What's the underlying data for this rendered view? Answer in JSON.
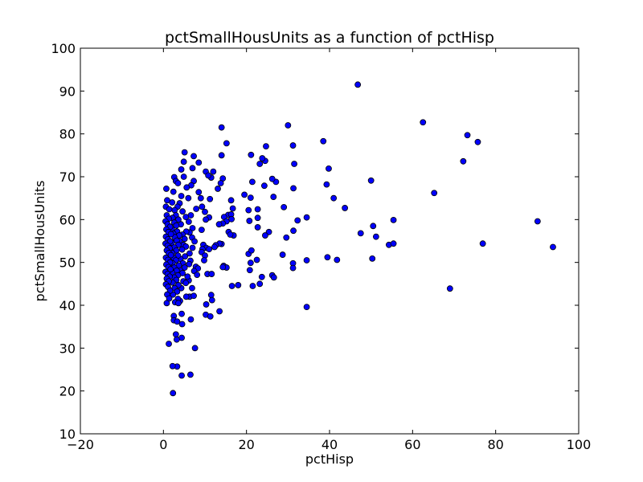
{
  "chart_data": {
    "type": "scatter",
    "title": "pctSmallHousUnits as a function of pctHisp",
    "xlabel": "pctHisp",
    "ylabel": "pctSmallHousUnits",
    "xlim": [
      -20,
      100
    ],
    "ylim": [
      10,
      100
    ],
    "xticks": [
      -20,
      0,
      20,
      40,
      60,
      80,
      100
    ],
    "yticks": [
      10,
      20,
      30,
      40,
      50,
      60,
      70,
      80,
      90,
      100
    ],
    "xtick_labels": [
      "−20",
      "0",
      "20",
      "40",
      "60",
      "80",
      "100"
    ],
    "ytick_labels": [
      "10",
      "20",
      "30",
      "40",
      "50",
      "60",
      "70",
      "80",
      "90",
      "100"
    ],
    "grid": false,
    "marker_color": "#0000ff",
    "marker_edge_color": "#000000",
    "points": [
      [
        46.8,
        91.5
      ],
      [
        62.5,
        82.7
      ],
      [
        73.2,
        79.7
      ],
      [
        75.7,
        78.1
      ],
      [
        72.2,
        73.6
      ],
      [
        65.2,
        66.2
      ],
      [
        90.1,
        59.6
      ],
      [
        93.8,
        53.6
      ],
      [
        76.9,
        54.4
      ],
      [
        69.0,
        43.9
      ],
      [
        50.0,
        69.1
      ],
      [
        47.5,
        56.8
      ],
      [
        50.5,
        58.5
      ],
      [
        51.2,
        56.0
      ],
      [
        54.3,
        54.1
      ],
      [
        55.4,
        54.4
      ],
      [
        55.4,
        59.9
      ],
      [
        50.3,
        50.9
      ],
      [
        43.7,
        62.7
      ],
      [
        41.0,
        65.0
      ],
      [
        39.8,
        71.9
      ],
      [
        39.3,
        68.2
      ],
      [
        38.5,
        78.3
      ],
      [
        39.5,
        51.2
      ],
      [
        41.8,
        50.6
      ],
      [
        34.5,
        60.5
      ],
      [
        34.5,
        50.5
      ],
      [
        34.5,
        39.6
      ],
      [
        32.3,
        59.8
      ],
      [
        31.5,
        73.0
      ],
      [
        31.2,
        77.3
      ],
      [
        31.3,
        67.3
      ],
      [
        31.3,
        57.4
      ],
      [
        30.0,
        82.0
      ],
      [
        29.6,
        55.8
      ],
      [
        29.0,
        62.9
      ],
      [
        28.7,
        51.8
      ],
      [
        31.2,
        49.8
      ],
      [
        31.2,
        48.7
      ],
      [
        27.1,
        68.8
      ],
      [
        26.2,
        69.5
      ],
      [
        26.5,
        65.3
      ],
      [
        25.4,
        57.1
      ],
      [
        24.5,
        56.3
      ],
      [
        24.5,
        73.7
      ],
      [
        24.3,
        67.9
      ],
      [
        23.8,
        74.3
      ],
      [
        24.7,
        77.1
      ],
      [
        23.2,
        73.0
      ],
      [
        22.7,
        62.4
      ],
      [
        22.7,
        60.4
      ],
      [
        22.7,
        58.2
      ],
      [
        22.5,
        50.6
      ],
      [
        23.2,
        45.0
      ],
      [
        23.7,
        46.6
      ],
      [
        26.2,
        47.0
      ],
      [
        26.6,
        46.5
      ],
      [
        21.1,
        75.1
      ],
      [
        21.0,
        65.1
      ],
      [
        20.7,
        59.7
      ],
      [
        20.5,
        62.2
      ],
      [
        21.4,
        68.8
      ],
      [
        20.5,
        52.0
      ],
      [
        21.2,
        52.8
      ],
      [
        21.0,
        49.9
      ],
      [
        20.8,
        48.2
      ],
      [
        21.5,
        44.5
      ],
      [
        18.0,
        44.7
      ],
      [
        19.5,
        65.8
      ],
      [
        14.0,
        81.5
      ],
      [
        15.2,
        77.8
      ],
      [
        14.0,
        75.0
      ],
      [
        14.3,
        69.6
      ],
      [
        13.8,
        68.5
      ],
      [
        13.1,
        67.2
      ],
      [
        16.3,
        64.5
      ],
      [
        16.7,
        62.6
      ],
      [
        15.6,
        61.1
      ],
      [
        16.3,
        61.2
      ],
      [
        14.6,
        60.6
      ],
      [
        15.2,
        59.6
      ],
      [
        16.4,
        60.1
      ],
      [
        14.3,
        59.1
      ],
      [
        13.4,
        58.9
      ],
      [
        15.7,
        57.1
      ],
      [
        16.9,
        56.3
      ],
      [
        16.1,
        56.5
      ],
      [
        14.0,
        54.3
      ],
      [
        13.5,
        54.4
      ],
      [
        12.6,
        54.0
      ],
      [
        12.3,
        53.6
      ],
      [
        14.5,
        49.2
      ],
      [
        15.2,
        48.8
      ],
      [
        14.3,
        48.9
      ],
      [
        13.5,
        38.6
      ],
      [
        16.5,
        44.5
      ],
      [
        12.0,
        71.2
      ],
      [
        11.5,
        69.8
      ],
      [
        10.2,
        71.2
      ],
      [
        10.8,
        70.3
      ],
      [
        11.2,
        64.8
      ],
      [
        10.0,
        61.8
      ],
      [
        11.0,
        60.5
      ],
      [
        10.2,
        60.0
      ],
      [
        9.3,
        63.0
      ],
      [
        9.0,
        65.0
      ],
      [
        8.5,
        66.4
      ],
      [
        9.2,
        57.6
      ],
      [
        9.6,
        54.1
      ],
      [
        10.3,
        53.4
      ],
      [
        11.0,
        53.1
      ],
      [
        9.4,
        53.1
      ],
      [
        9.2,
        52.4
      ],
      [
        10.0,
        51.6
      ],
      [
        9.8,
        50.5
      ],
      [
        10.6,
        47.3
      ],
      [
        11.6,
        47.3
      ],
      [
        11.5,
        42.4
      ],
      [
        11.7,
        41.2
      ],
      [
        10.3,
        40.2
      ],
      [
        10.2,
        37.8
      ],
      [
        11.3,
        37.4
      ],
      [
        8.5,
        73.3
      ],
      [
        7.3,
        74.8
      ],
      [
        7.0,
        72.0
      ],
      [
        7.3,
        69.0
      ],
      [
        6.7,
        68.0
      ],
      [
        6.0,
        65.0
      ],
      [
        7.9,
        62.5
      ],
      [
        6.6,
        61.0
      ],
      [
        6.1,
        59.5
      ],
      [
        7.0,
        58.0
      ],
      [
        6.3,
        57.0
      ],
      [
        6.9,
        55.8
      ],
      [
        7.5,
        54.9
      ],
      [
        7.0,
        53.4
      ],
      [
        6.3,
        52.1
      ],
      [
        6.5,
        50.4
      ],
      [
        6.2,
        49.6
      ],
      [
        7.8,
        49.0
      ],
      [
        8.3,
        48.6
      ],
      [
        7.4,
        48.0
      ],
      [
        8.1,
        47.1
      ],
      [
        6.1,
        45.8
      ],
      [
        6.9,
        44.0
      ],
      [
        6.3,
        42.0
      ],
      [
        7.3,
        42.2
      ],
      [
        6.6,
        36.7
      ],
      [
        7.6,
        30.0
      ],
      [
        6.5,
        23.8
      ],
      [
        5.1,
        75.7
      ],
      [
        4.9,
        73.5
      ],
      [
        4.3,
        71.7
      ],
      [
        4.9,
        70.0
      ],
      [
        5.6,
        67.5
      ],
      [
        4.3,
        65.5
      ],
      [
        3.9,
        63.8
      ],
      [
        4.6,
        61.9
      ],
      [
        5.4,
        60.6
      ],
      [
        4.2,
        58.9
      ],
      [
        5.5,
        57.2
      ],
      [
        4.6,
        56.5
      ],
      [
        5.1,
        55.5
      ],
      [
        3.9,
        55.0
      ],
      [
        4.8,
        54.1
      ],
      [
        5.4,
        53.7
      ],
      [
        4.5,
        53.0
      ],
      [
        5.2,
        51.4
      ],
      [
        4.1,
        50.8
      ],
      [
        4.7,
        49.8
      ],
      [
        5.1,
        48.8
      ],
      [
        4.0,
        48.2
      ],
      [
        4.6,
        47.5
      ],
      [
        5.8,
        46.7
      ],
      [
        4.8,
        45.6
      ],
      [
        5.4,
        45.2
      ],
      [
        4.3,
        44.0
      ],
      [
        5.5,
        42.0
      ],
      [
        4.0,
        41.0
      ],
      [
        4.4,
        38.0
      ],
      [
        4.5,
        35.6
      ],
      [
        4.4,
        32.4
      ],
      [
        4.4,
        23.6
      ],
      [
        2.6,
        69.9
      ],
      [
        3.0,
        69.0
      ],
      [
        3.5,
        68.5
      ],
      [
        2.4,
        66.5
      ],
      [
        2.1,
        64.0
      ],
      [
        3.4,
        63.0
      ],
      [
        2.7,
        62.2
      ],
      [
        3.0,
        61.0
      ],
      [
        2.2,
        60.4
      ],
      [
        3.6,
        60.0
      ],
      [
        2.6,
        59.3
      ],
      [
        3.1,
        58.6
      ],
      [
        2.0,
        57.8
      ],
      [
        3.3,
        57.2
      ],
      [
        2.4,
        56.7
      ],
      [
        3.8,
        56.3
      ],
      [
        2.7,
        55.9
      ],
      [
        3.2,
        55.1
      ],
      [
        2.0,
        54.6
      ],
      [
        3.6,
        54.1
      ],
      [
        2.6,
        53.5
      ],
      [
        3.1,
        52.8
      ],
      [
        2.1,
        52.2
      ],
      [
        3.5,
        51.6
      ],
      [
        2.5,
        51.0
      ],
      [
        3.0,
        50.5
      ],
      [
        2.2,
        49.8
      ],
      [
        3.7,
        49.3
      ],
      [
        2.6,
        48.8
      ],
      [
        3.2,
        48.1
      ],
      [
        2.1,
        47.6
      ],
      [
        3.5,
        47.0
      ],
      [
        2.6,
        46.5
      ],
      [
        3.1,
        45.9
      ],
      [
        2.2,
        45.3
      ],
      [
        3.6,
        44.7
      ],
      [
        2.7,
        44.0
      ],
      [
        3.3,
        43.2
      ],
      [
        2.3,
        42.5
      ],
      [
        3.5,
        41.5
      ],
      [
        2.8,
        40.7
      ],
      [
        3.6,
        40.5
      ],
      [
        2.5,
        37.5
      ],
      [
        2.5,
        36.5
      ],
      [
        3.3,
        36.2
      ],
      [
        3.0,
        33.2
      ],
      [
        3.2,
        32.0
      ],
      [
        3.3,
        25.7
      ],
      [
        2.2,
        25.8
      ],
      [
        2.3,
        19.5
      ],
      [
        0.7,
        67.2
      ],
      [
        0.9,
        64.5
      ],
      [
        0.6,
        63.0
      ],
      [
        1.4,
        62.4
      ],
      [
        0.8,
        61.0
      ],
      [
        1.3,
        60.2
      ],
      [
        0.5,
        59.6
      ],
      [
        1.0,
        58.9
      ],
      [
        1.6,
        58.3
      ],
      [
        0.7,
        57.7
      ],
      [
        1.2,
        57.1
      ],
      [
        1.8,
        56.6
      ],
      [
        0.6,
        56.0
      ],
      [
        1.1,
        55.4
      ],
      [
        1.6,
        54.9
      ],
      [
        0.5,
        54.4
      ],
      [
        1.0,
        53.9
      ],
      [
        1.5,
        53.3
      ],
      [
        0.8,
        52.8
      ],
      [
        1.3,
        52.2
      ],
      [
        1.8,
        51.7
      ],
      [
        0.6,
        51.1
      ],
      [
        1.1,
        50.6
      ],
      [
        1.6,
        50.0
      ],
      [
        0.7,
        49.5
      ],
      [
        1.2,
        48.9
      ],
      [
        1.7,
        48.4
      ],
      [
        0.5,
        47.8
      ],
      [
        1.0,
        47.3
      ],
      [
        1.5,
        46.7
      ],
      [
        0.8,
        46.2
      ],
      [
        1.3,
        45.6
      ],
      [
        0.6,
        44.9
      ],
      [
        1.1,
        44.3
      ],
      [
        1.6,
        43.4
      ],
      [
        0.9,
        42.5
      ],
      [
        1.4,
        41.6
      ],
      [
        0.8,
        40.5
      ],
      [
        1.3,
        31.0
      ]
    ]
  }
}
